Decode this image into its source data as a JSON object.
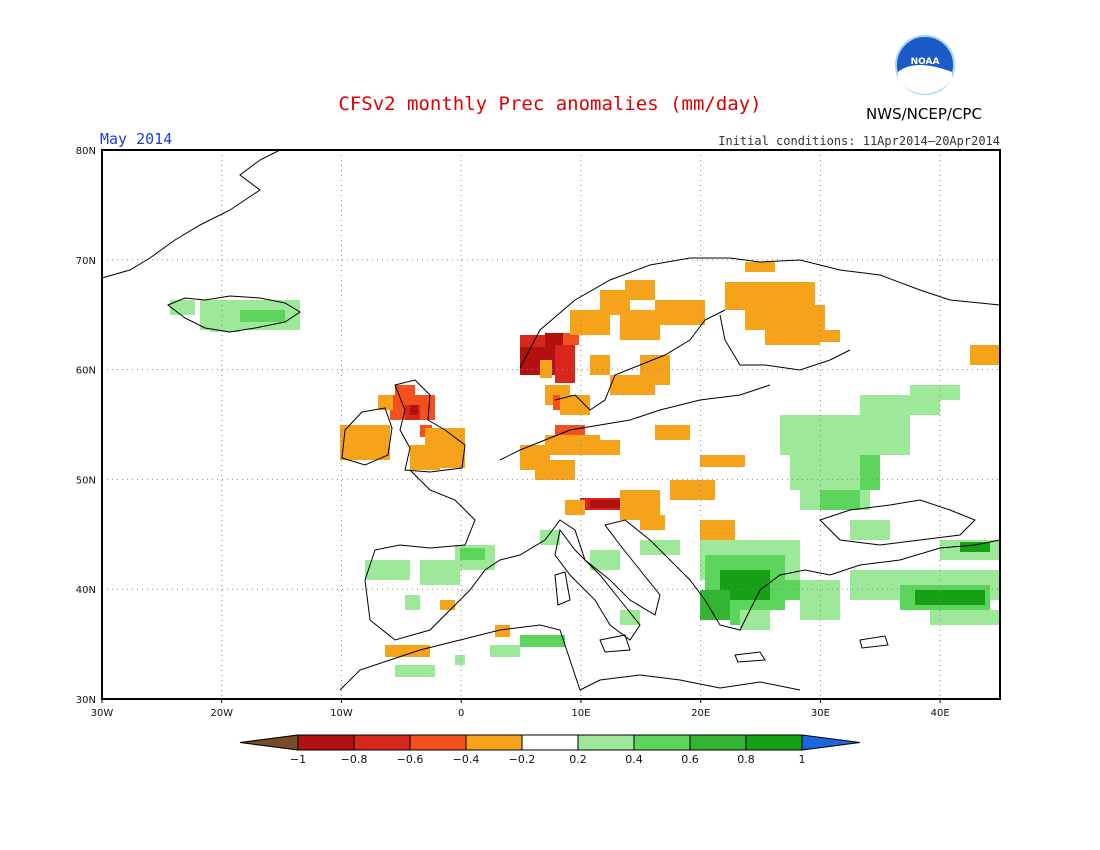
{
  "header": {
    "title": "CFSv2 monthly Prec anomalies (mm/day)",
    "period": "May 2014",
    "initial_conditions": "Initial conditions: 11Apr2014—20Apr2014",
    "agency": "NWS/NCEP/CPC",
    "logo_text": "NOAA"
  },
  "map": {
    "lon_ticks": [
      "30W",
      "20W",
      "10W",
      "0",
      "10E",
      "20E",
      "30E",
      "40E"
    ],
    "lat_ticks": [
      "80N",
      "70N",
      "60N",
      "50N",
      "40N",
      "30N"
    ],
    "colors": {
      "frame": "#000000",
      "grid": "#888888",
      "coast": "#000000"
    }
  },
  "colorbar": {
    "ticks": [
      "−1",
      "−0.8",
      "−0.6",
      "−0.4",
      "−0.2",
      "0.2",
      "0.4",
      "0.6",
      "0.8",
      "1"
    ],
    "colors": [
      "#7a4a2a",
      "#b31010",
      "#d8261c",
      "#f4501e",
      "#f5a31a",
      "#ffffff",
      "#9ee89a",
      "#5bd55b",
      "#33b533",
      "#16a016",
      "#1e66e0"
    ]
  },
  "chart_data": {
    "type": "heatmap",
    "title": "CFSv2 monthly Prec anomalies (mm/day)",
    "variable": "Precipitation anomaly",
    "units": "mm/day",
    "period": "May 2014",
    "initial_conditions": "11Apr2014—20Apr2014",
    "xlim": [
      -30,
      45
    ],
    "ylim": [
      30,
      80
    ],
    "levels": [
      -1,
      -0.8,
      -0.6,
      -0.4,
      -0.2,
      0.2,
      0.4,
      0.6,
      0.8,
      1
    ],
    "regions": [
      {
        "name": "SW Norway",
        "lon": [
          5,
          10
        ],
        "lat": [
          59,
          62.5
        ],
        "category": "-1 to -0.8"
      },
      {
        "name": "Western Norway coast",
        "lon": [
          4,
          11
        ],
        "lat": [
          58.5,
          64
        ],
        "category": "-0.6 to -0.4"
      },
      {
        "name": "N Norway / N Sweden",
        "lon": [
          10,
          20
        ],
        "lat": [
          63,
          68
        ],
        "category": "-0.4 to -0.2"
      },
      {
        "name": "Finland",
        "lon": [
          22,
          31
        ],
        "lat": [
          61,
          67
        ],
        "category": "-0.4 to -0.2"
      },
      {
        "name": "Scotland",
        "lon": [
          -7,
          -2
        ],
        "lat": [
          55.5,
          58.5
        ],
        "category": "-0.6 to -0.4"
      },
      {
        "name": "Ireland / England",
        "lon": [
          -10,
          1
        ],
        "lat": [
          50.5,
          54
        ],
        "category": "-0.4 to -0.2"
      },
      {
        "name": "Germany west",
        "lon": [
          6,
          11
        ],
        "lat": [
          51.5,
          55
        ],
        "category": "-0.6 to -0.4"
      },
      {
        "name": "Alps",
        "lon": [
          9,
          14
        ],
        "lat": [
          46.5,
          48
        ],
        "category": "-0.8 to -0.6"
      },
      {
        "name": "Austria / Hungary",
        "lon": [
          13,
          21
        ],
        "lat": [
          45,
          50
        ],
        "category": "-0.4 to -0.2"
      },
      {
        "name": "Western Russia",
        "lon": [
          27,
          37
        ],
        "lat": [
          47,
          56
        ],
        "category": "0.2 to 0.4"
      },
      {
        "name": "Greece / Aegean",
        "lon": [
          20,
          29
        ],
        "lat": [
          37,
          43
        ],
        "category": "0.6 to 0.8"
      },
      {
        "name": "Turkey",
        "lon": [
          34,
          45
        ],
        "lat": [
          38,
          41
        ],
        "category": "0.6 to 0.8"
      },
      {
        "name": "Iberia",
        "lon": [
          -8,
          3
        ],
        "lat": [
          38,
          43
        ],
        "category": "0.2 to 0.4"
      },
      {
        "name": "Iceland",
        "lon": [
          -24,
          -14
        ],
        "lat": [
          63.5,
          66
        ],
        "category": "0.4 to 0.6"
      }
    ]
  }
}
